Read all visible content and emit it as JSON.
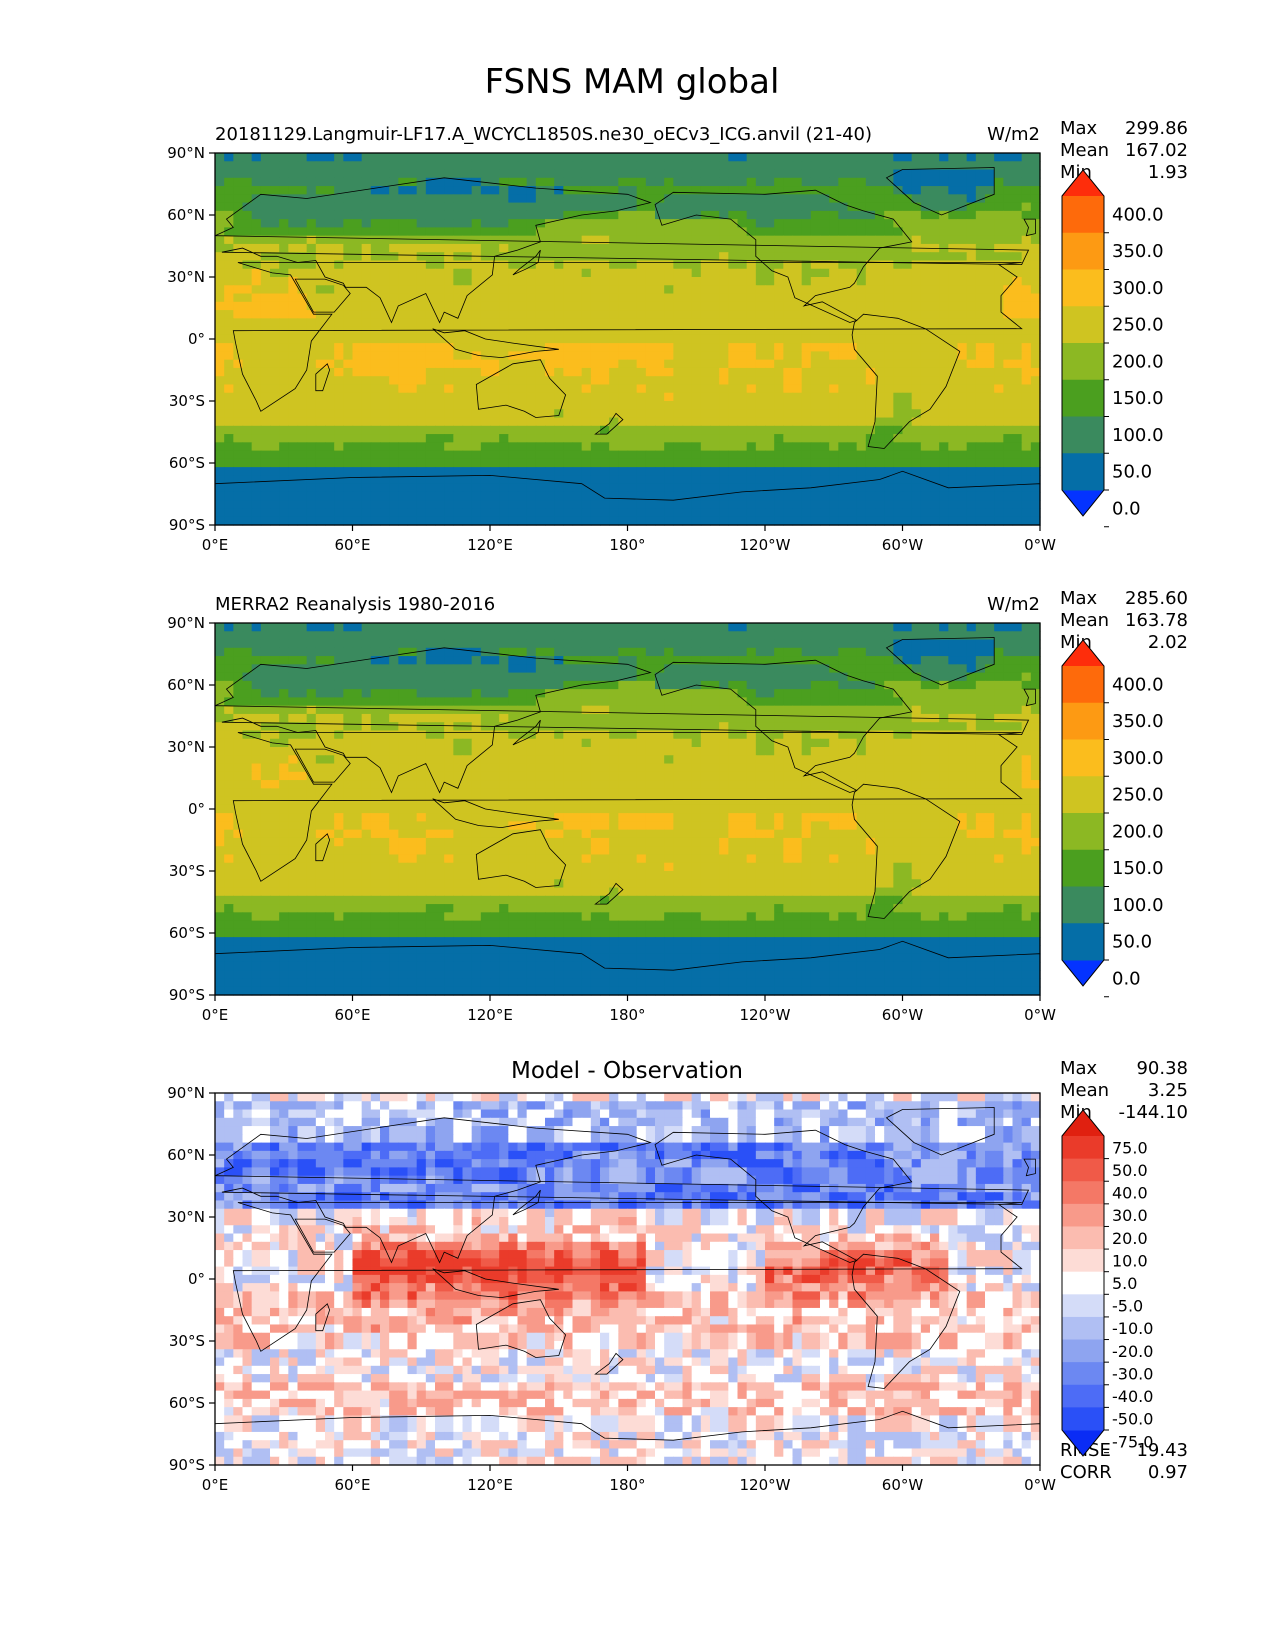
{
  "figure": {
    "title": "FSNS MAM global"
  },
  "chart_data": [
    {
      "type": "heatmap",
      "title": "20181129.Langmuir-LF17.A_WCYCL1850S.ne30_oECv3_ICG.anvil (21-40)",
      "units": "W/m2",
      "stats": {
        "max_label": "Max",
        "max": "299.86",
        "mean_label": "Mean",
        "mean": "167.02",
        "min_label": "Min",
        "min": "1.93"
      },
      "xticks": [
        "0°E",
        "60°E",
        "120°E",
        "180°",
        "120°W",
        "60°W",
        "0°W"
      ],
      "yticks": [
        "90°N",
        "60°N",
        "30°N",
        "0°",
        "30°S",
        "60°S",
        "90°S"
      ],
      "xlim": [
        0,
        360
      ],
      "ylim": [
        -90,
        90
      ],
      "colorbar": {
        "levels": [
          "400.0",
          "350.0",
          "300.0",
          "250.0",
          "200.0",
          "150.0",
          "100.0",
          "50.0",
          "0.0"
        ],
        "colors": [
          "#0433ff",
          "#056ea7",
          "#3a8a5e",
          "#4b9f1f",
          "#8cb823",
          "#cfc421",
          "#fbbd1d",
          "#fd9a13",
          "#fe6a0b",
          "#fe2d0b"
        ]
      }
    },
    {
      "type": "heatmap",
      "title": "MERRA2 Reanalysis 1980-2016",
      "units": "W/m2",
      "stats": {
        "max_label": "Max",
        "max": "285.60",
        "mean_label": "Mean",
        "mean": "163.78",
        "min_label": "Min",
        "min": "2.02"
      },
      "xticks": [
        "0°E",
        "60°E",
        "120°E",
        "180°",
        "120°W",
        "60°W",
        "0°W"
      ],
      "yticks": [
        "90°N",
        "60°N",
        "30°N",
        "0°",
        "30°S",
        "60°S",
        "90°S"
      ],
      "xlim": [
        0,
        360
      ],
      "ylim": [
        -90,
        90
      ],
      "colorbar": {
        "levels": [
          "400.0",
          "350.0",
          "300.0",
          "250.0",
          "200.0",
          "150.0",
          "100.0",
          "50.0",
          "0.0"
        ],
        "colors": [
          "#0433ff",
          "#056ea7",
          "#3a8a5e",
          "#4b9f1f",
          "#8cb823",
          "#cfc421",
          "#fbbd1d",
          "#fd9a13",
          "#fe6a0b",
          "#fe2d0b"
        ]
      }
    },
    {
      "type": "heatmap",
      "title": "Model - Observation",
      "units": "",
      "stats": {
        "max_label": "Max",
        "max": "90.38",
        "mean_label": "Mean",
        "mean": "3.25",
        "min_label": "Min",
        "min": "-144.10"
      },
      "extra_stats": {
        "rmse_label": "RMSE",
        "rmse": "19.43",
        "corr_label": "CORR",
        "corr": "0.97"
      },
      "xticks": [
        "0°E",
        "60°E",
        "120°E",
        "180°",
        "120°W",
        "60°W",
        "0°W"
      ],
      "yticks": [
        "90°N",
        "60°N",
        "30°N",
        "0°",
        "30°S",
        "60°S",
        "90°S"
      ],
      "xlim": [
        0,
        360
      ],
      "ylim": [
        -90,
        90
      ],
      "colorbar": {
        "levels": [
          "75.0",
          "50.0",
          "40.0",
          "30.0",
          "20.0",
          "10.0",
          "5.0",
          "-5.0",
          "-10.0",
          "-20.0",
          "-30.0",
          "-40.0",
          "-50.0",
          "-75.0"
        ],
        "colors": [
          "#0a2cf5",
          "#2a50f7",
          "#4d6cf6",
          "#6c88f2",
          "#8ea4f0",
          "#b0bff3",
          "#d4dcf8",
          "#ffffff",
          "#fddcd6",
          "#fbbcb0",
          "#f89a8a",
          "#f47866",
          "#f05a48",
          "#ea3b2a",
          "#e02010"
        ]
      }
    }
  ]
}
